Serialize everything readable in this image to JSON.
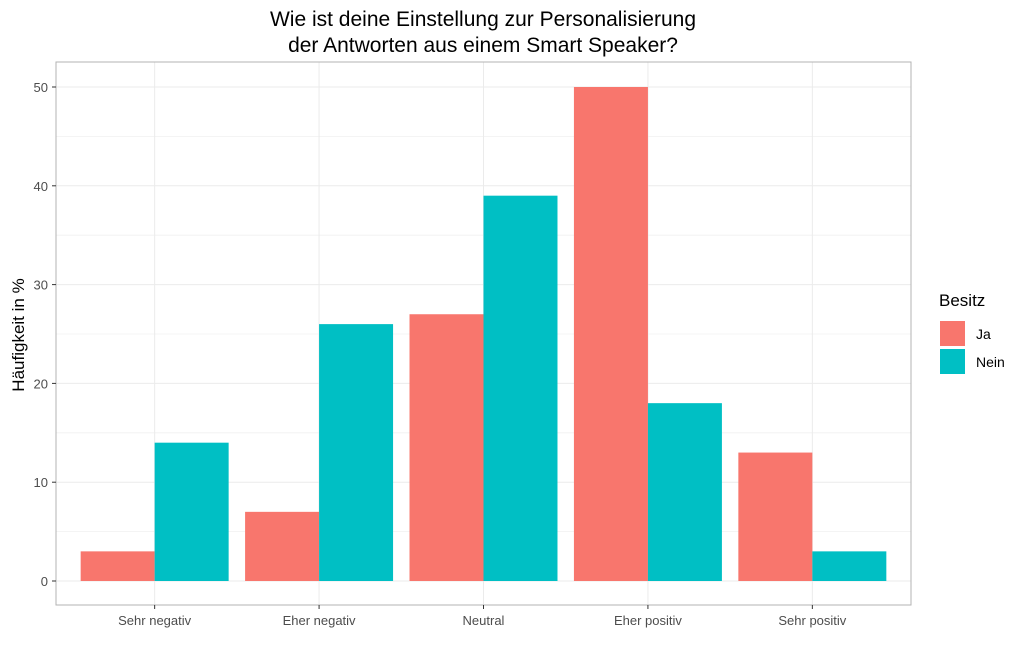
{
  "chart_data": {
    "type": "bar",
    "title_lines": [
      "Wie ist deine Einstellung zur Personalisierung",
      "der Antworten aus einem Smart Speaker?"
    ],
    "xlabel": "",
    "ylabel": "Häufigkeit in %",
    "categories": [
      "Sehr negativ",
      "Eher negativ",
      "Neutral",
      "Eher positiv",
      "Sehr positiv"
    ],
    "series": [
      {
        "name": "Ja",
        "color": "#F8766D",
        "values": [
          3,
          7,
          27,
          50,
          13
        ]
      },
      {
        "name": "Nein",
        "color": "#00BFC4",
        "values": [
          14,
          26,
          39,
          18,
          3
        ]
      }
    ],
    "ylim": [
      0,
      52
    ],
    "yticks": [
      0,
      10,
      20,
      30,
      40,
      50
    ],
    "grid": true,
    "legend": {
      "title": "Besitz",
      "position": "right"
    }
  }
}
